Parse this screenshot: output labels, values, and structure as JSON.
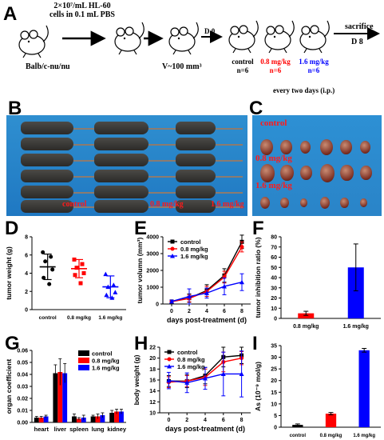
{
  "panels": {
    "A": "A",
    "B": "B",
    "C": "C",
    "D": "D",
    "E": "E",
    "F": "F",
    "G": "G",
    "H": "H",
    "I": "I"
  },
  "schematic": {
    "cells_line1": "2×10⁷/mL HL-60",
    "cells_line2": "cells in 0.1 mL PBS",
    "strain": "Balb/c-nu/nu",
    "volume": "V~100 mm³",
    "d0": "D 0",
    "d8": "D 8",
    "sacrifice": "sacrifice",
    "groups": [
      {
        "label": "control",
        "n": "n=6",
        "color": "#000000"
      },
      {
        "label": "0.8 mg/kg",
        "n": "n=6",
        "color": "#ff0000"
      },
      {
        "label": "1.6 mg/kg",
        "n": "n=6",
        "color": "#0000ff"
      }
    ],
    "dosing": "every two days (i.p.)"
  },
  "photo_b": {
    "labels": [
      "control",
      "0.8 mg/kg",
      "1.6 mg/kg"
    ]
  },
  "photo_c": {
    "labels": [
      "control",
      "0.8 mg/kg",
      "1.6 mg/kg"
    ]
  },
  "chart_data": [
    {
      "panel": "D",
      "type": "scatter",
      "xlabel": "",
      "ylabel": "tumor weight (g)",
      "categories": [
        "control",
        "0.8 mg/kg",
        "1.6 mg/kg"
      ],
      "ylim": [
        0,
        8
      ],
      "yticks": [
        0,
        2,
        4,
        6,
        8
      ],
      "series": [
        {
          "name": "control",
          "color": "#000000",
          "marker": "circle",
          "points": [
            6.3,
            5.8,
            5.3,
            4.4,
            3.5,
            2.8
          ],
          "mean": 4.7,
          "sd": 1.4
        },
        {
          "name": "0.8 mg/kg",
          "color": "#ff0000",
          "marker": "square",
          "points": [
            5.5,
            5.0,
            4.6,
            4.0,
            3.8,
            2.9
          ],
          "mean": 4.5,
          "sd": 1.0
        },
        {
          "name": "1.6 mg/kg",
          "color": "#0000ff",
          "marker": "triangle",
          "points": [
            3.9,
            2.7,
            2.5,
            1.9,
            1.6,
            1.3
          ],
          "mean": 2.5,
          "sd": 1.2
        }
      ]
    },
    {
      "panel": "E",
      "type": "line",
      "xlabel": "days post-treatment (d)",
      "ylabel": "tumor volumn (mm³)",
      "x": [
        0,
        2,
        4,
        6,
        8
      ],
      "xlim": [
        -1,
        9
      ],
      "ylim": [
        0,
        4000
      ],
      "yticks": [
        0,
        1000,
        2000,
        3000,
        4000
      ],
      "legend_position": "top-left",
      "series": [
        {
          "name": "control",
          "color": "#000000",
          "values": [
            150,
            350,
            800,
            1700,
            3700
          ],
          "errors": [
            50,
            250,
            350,
            400,
            400
          ]
        },
        {
          "name": "0.8 mg/kg",
          "color": "#ff0000",
          "values": [
            140,
            330,
            750,
            1600,
            3400
          ],
          "errors": [
            50,
            200,
            300,
            350,
            300
          ]
        },
        {
          "name": "1.6 mg/kg",
          "color": "#0000ff",
          "values": [
            150,
            450,
            650,
            1050,
            1300
          ],
          "errors": [
            80,
            450,
            300,
            500,
            500
          ]
        }
      ]
    },
    {
      "panel": "F",
      "type": "bar",
      "xlabel": "",
      "ylabel": "tumor inhibition ratio (%)",
      "categories": [
        "0.8 mg/kg",
        "1.6 mg/kg"
      ],
      "ylim": [
        0,
        80
      ],
      "yticks": [
        0,
        10,
        20,
        30,
        40,
        50,
        60,
        70,
        80
      ],
      "values": [
        5,
        50
      ],
      "errors": [
        2,
        23
      ],
      "colors": [
        "#ff0000",
        "#0000ff"
      ]
    },
    {
      "panel": "G",
      "type": "bar",
      "xlabel": "",
      "ylabel": "organ coefficient",
      "categories": [
        "heart",
        "liver",
        "spleen",
        "lung",
        "kidney"
      ],
      "ylim": [
        0,
        0.06
      ],
      "yticks": [
        0.0,
        0.01,
        0.02,
        0.03,
        0.04,
        0.05,
        0.06
      ],
      "legend_position": "top-right",
      "series": [
        {
          "name": "control",
          "color": "#000000",
          "values": [
            0.004,
            0.041,
            0.005,
            0.005,
            0.008
          ],
          "errors": [
            0.001,
            0.007,
            0.002,
            0.001,
            0.002
          ]
        },
        {
          "name": "0.8 mg/kg",
          "color": "#ff0000",
          "values": [
            0.004,
            0.042,
            0.003,
            0.005,
            0.009
          ],
          "errors": [
            0.001,
            0.011,
            0.001,
            0.002,
            0.002
          ]
        },
        {
          "name": "1.6 mg/kg",
          "color": "#0000ff",
          "values": [
            0.005,
            0.041,
            0.004,
            0.006,
            0.009
          ],
          "errors": [
            0.001,
            0.008,
            0.002,
            0.002,
            0.002
          ]
        }
      ]
    },
    {
      "panel": "H",
      "type": "line",
      "xlabel": "days post-treatment (d)",
      "ylabel": "body weight (g)",
      "x": [
        0,
        2,
        4,
        6,
        8
      ],
      "xlim": [
        -1,
        9
      ],
      "ylim": [
        10,
        22
      ],
      "yticks": [
        10,
        12,
        14,
        16,
        18,
        20,
        22
      ],
      "legend_position": "top-left",
      "series": [
        {
          "name": "control",
          "color": "#000000",
          "values": [
            15.8,
            15.8,
            16.8,
            20.2,
            20.5
          ],
          "errors": [
            1.0,
            1.2,
            1.5,
            1.8,
            1.5
          ]
        },
        {
          "name": "0.8 mg/kg",
          "color": "#ff0000",
          "values": [
            15.6,
            15.8,
            16.5,
            19.3,
            20.0
          ],
          "errors": [
            1.0,
            1.0,
            1.5,
            1.8,
            1.2
          ]
        },
        {
          "name": "1.6 mg/kg",
          "color": "#0000ff",
          "values": [
            15.9,
            15.5,
            16.3,
            17.1,
            17.1
          ],
          "errors": [
            1.5,
            1.8,
            2.0,
            4.0,
            4.2
          ]
        }
      ]
    },
    {
      "panel": "I",
      "type": "bar",
      "xlabel": "",
      "ylabel": "As (10⁻⁹ mol/g)",
      "categories": [
        "control",
        "0.8 mg/kg",
        "1.6 mg/kg"
      ],
      "ylim": [
        0,
        35
      ],
      "yticks": [
        0,
        5,
        10,
        15,
        20,
        25,
        30,
        35
      ],
      "values": [
        1.0,
        5.8,
        33.0
      ],
      "errors": [
        0.4,
        0.5,
        0.8
      ],
      "colors": [
        "#000000",
        "#ff0000",
        "#0000ff"
      ]
    }
  ]
}
